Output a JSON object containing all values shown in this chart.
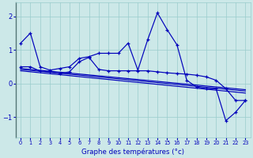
{
  "xlabel": "Graphe des températures (°c)",
  "bg_color": "#cce8e8",
  "line_color": "#0000bb",
  "grid_color": "#99cccc",
  "xlim": [
    -0.5,
    23.5
  ],
  "ylim": [
    -1.6,
    2.4
  ],
  "xticks": [
    0,
    1,
    2,
    3,
    4,
    5,
    6,
    7,
    8,
    9,
    10,
    11,
    12,
    13,
    14,
    15,
    16,
    17,
    18,
    19,
    20,
    21,
    22,
    23
  ],
  "yticks": [
    -1,
    0,
    1,
    2
  ],
  "main_line": [
    1.2,
    1.5,
    0.5,
    0.4,
    0.45,
    0.5,
    0.75,
    0.8,
    0.9,
    0.9,
    0.9,
    1.2,
    0.4,
    1.3,
    2.1,
    1.6,
    1.15,
    0.1,
    -0.1,
    -0.15,
    -0.15,
    -1.1,
    -0.85,
    -0.5
  ],
  "mid_line": [
    0.5,
    0.5,
    0.37,
    0.35,
    0.3,
    0.35,
    0.65,
    0.78,
    0.42,
    0.38,
    0.38,
    0.38,
    0.38,
    0.38,
    0.35,
    0.32,
    0.3,
    0.28,
    0.25,
    0.2,
    0.1,
    -0.15,
    -0.5,
    -0.5
  ],
  "reg_lines": [
    {
      "x0": 0,
      "y0": 0.45,
      "x1": 23,
      "y1": -0.18
    },
    {
      "x0": 0,
      "y0": 0.42,
      "x1": 23,
      "y1": -0.22
    },
    {
      "x0": 0,
      "y0": 0.38,
      "x1": 23,
      "y1": -0.28
    }
  ]
}
